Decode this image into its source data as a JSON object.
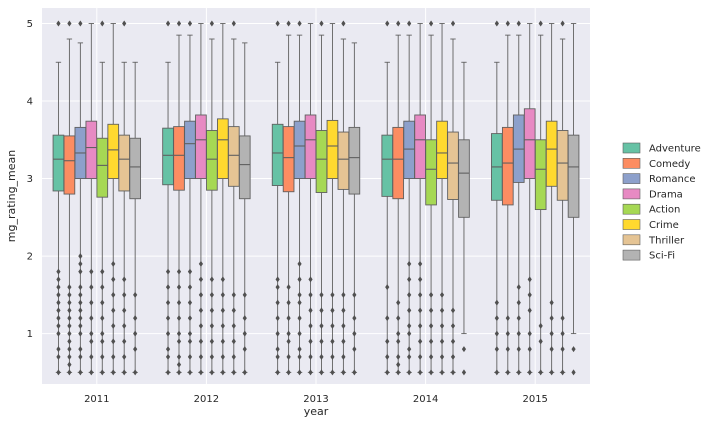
{
  "chart_data": {
    "type": "box",
    "xlabel": "year",
    "ylabel": "mg_rating_mean",
    "ylim": [
      0.35,
      5.2
    ],
    "y_ticks": [
      1,
      2,
      3,
      4,
      5
    ],
    "grid": true,
    "legend_position": "right",
    "categories": [
      "2011",
      "2012",
      "2013",
      "2014",
      "2015"
    ],
    "series": [
      {
        "name": "Adventure",
        "color": "#66c2a5",
        "boxes": [
          {
            "whislo": 0.5,
            "q1": 2.84,
            "med": 3.25,
            "q3": 3.56,
            "whishi": 4.5,
            "fliers": [
              0.5,
              0.7,
              0.8,
              1.0,
              1.1,
              1.2,
              1.3,
              1.4,
              1.5,
              1.6,
              1.7,
              1.8,
              5.0
            ]
          },
          {
            "whislo": 0.5,
            "q1": 2.92,
            "med": 3.3,
            "q3": 3.65,
            "whishi": 4.5,
            "fliers": [
              0.5,
              0.7,
              0.8,
              1.0,
              1.2,
              1.4,
              1.6,
              1.8,
              5.0
            ]
          },
          {
            "whislo": 0.5,
            "q1": 2.91,
            "med": 3.33,
            "q3": 3.7,
            "whishi": 4.5,
            "fliers": [
              0.5,
              0.7,
              0.8,
              1.0,
              1.2,
              1.4,
              1.6,
              1.7,
              5.0
            ]
          },
          {
            "whislo": 0.5,
            "q1": 2.77,
            "med": 3.25,
            "q3": 3.56,
            "whishi": 4.5,
            "fliers": [
              0.5,
              0.7,
              0.9,
              1.2,
              1.6,
              5.0
            ]
          },
          {
            "whislo": 0.5,
            "q1": 2.72,
            "med": 3.15,
            "q3": 3.58,
            "whishi": 4.5,
            "fliers": [
              0.5,
              0.8,
              1.0,
              1.2,
              1.4,
              5.0
            ]
          }
        ]
      },
      {
        "name": "Comedy",
        "color": "#fc8d62",
        "boxes": [
          {
            "whislo": 0.5,
            "q1": 2.8,
            "med": 3.23,
            "q3": 3.55,
            "whishi": 4.8,
            "fliers": [
              0.5,
              0.6,
              0.7,
              0.8,
              0.9,
              1.0,
              1.1,
              1.2,
              1.3,
              1.4,
              1.5,
              1.6,
              5.0
            ]
          },
          {
            "whislo": 0.5,
            "q1": 2.85,
            "med": 3.3,
            "q3": 3.67,
            "whishi": 4.85,
            "fliers": [
              0.5,
              0.6,
              0.7,
              0.9,
              1.0,
              1.2,
              1.4,
              1.6,
              1.8,
              5.0
            ]
          },
          {
            "whislo": 0.5,
            "q1": 2.83,
            "med": 3.27,
            "q3": 3.67,
            "whishi": 4.85,
            "fliers": [
              0.5,
              0.7,
              0.9,
              1.0,
              1.2,
              1.4,
              1.6,
              5.0
            ]
          },
          {
            "whislo": 0.5,
            "q1": 2.74,
            "med": 3.25,
            "q3": 3.66,
            "whishi": 4.85,
            "fliers": [
              0.5,
              0.6,
              0.7,
              0.9,
              1.0,
              1.2,
              1.4,
              5.0
            ]
          },
          {
            "whislo": 0.5,
            "q1": 2.66,
            "med": 3.2,
            "q3": 3.66,
            "whishi": 4.85,
            "fliers": [
              0.5,
              0.8,
              1.0,
              1.2,
              5.0
            ]
          }
        ]
      },
      {
        "name": "Romance",
        "color": "#8da0cb",
        "boxes": [
          {
            "whislo": 0.5,
            "q1": 3.0,
            "med": 3.33,
            "q3": 3.66,
            "whishi": 4.75,
            "fliers": [
              0.5,
              0.7,
              0.8,
              1.0,
              1.1,
              1.2,
              1.3,
              1.4,
              1.5,
              1.6,
              1.8,
              1.9,
              2.0,
              5.0
            ]
          },
          {
            "whislo": 0.5,
            "q1": 3.0,
            "med": 3.45,
            "q3": 3.74,
            "whishi": 4.85,
            "fliers": [
              0.5,
              0.7,
              0.9,
              1.0,
              1.2,
              1.4,
              1.6,
              1.8,
              5.0
            ]
          },
          {
            "whislo": 0.5,
            "q1": 3.0,
            "med": 3.42,
            "q3": 3.74,
            "whishi": 4.85,
            "fliers": [
              0.5,
              0.7,
              0.8,
              1.0,
              1.2,
              1.4,
              1.5,
              1.7,
              1.9,
              5.0
            ]
          },
          {
            "whislo": 0.5,
            "q1": 3.0,
            "med": 3.38,
            "q3": 3.74,
            "whishi": 4.85,
            "fliers": [
              0.5,
              0.7,
              0.8,
              1.0,
              1.1,
              1.3,
              1.5,
              1.7,
              1.9,
              5.0
            ]
          },
          {
            "whislo": 0.5,
            "q1": 2.95,
            "med": 3.38,
            "q3": 3.82,
            "whishi": 4.85,
            "fliers": [
              0.5,
              0.8,
              1.0,
              1.2,
              1.4,
              1.6,
              5.0
            ]
          }
        ]
      },
      {
        "name": "Drama",
        "color": "#e78ac3",
        "boxes": [
          {
            "whislo": 0.5,
            "q1": 3.0,
            "med": 3.4,
            "q3": 3.74,
            "whishi": 5.0,
            "fliers": [
              0.5,
              0.7,
              0.9,
              1.0,
              1.2,
              1.4,
              1.6,
              1.8
            ]
          },
          {
            "whislo": 0.5,
            "q1": 3.0,
            "med": 3.5,
            "q3": 3.82,
            "whishi": 5.0,
            "fliers": [
              0.5,
              0.7,
              0.9,
              1.1,
              1.3,
              1.5,
              1.7,
              1.9
            ]
          },
          {
            "whislo": 0.5,
            "q1": 3.0,
            "med": 3.5,
            "q3": 3.82,
            "whishi": 5.0,
            "fliers": [
              0.5,
              0.7,
              0.9,
              1.1,
              1.3,
              1.5,
              1.7
            ]
          },
          {
            "whislo": 0.5,
            "q1": 3.0,
            "med": 3.5,
            "q3": 3.82,
            "whishi": 5.0,
            "fliers": [
              0.5,
              0.7,
              0.9,
              1.1,
              1.3,
              1.5,
              1.7,
              1.9
            ]
          },
          {
            "whislo": 0.5,
            "q1": 3.0,
            "med": 3.5,
            "q3": 3.9,
            "whishi": 5.0,
            "fliers": [
              0.5,
              0.8,
              1.0,
              1.3,
              1.5,
              1.7
            ]
          }
        ]
      },
      {
        "name": "Action",
        "color": "#a6d854",
        "boxes": [
          {
            "whislo": 0.5,
            "q1": 2.76,
            "med": 3.17,
            "q3": 3.52,
            "whishi": 4.5,
            "fliers": [
              0.5,
              0.7,
              0.9,
              1.0,
              1.2,
              1.4,
              1.6,
              1.8,
              5.0
            ]
          },
          {
            "whislo": 0.5,
            "q1": 2.85,
            "med": 3.25,
            "q3": 3.62,
            "whishi": 4.8,
            "fliers": [
              0.5,
              0.7,
              0.9,
              1.1,
              1.3,
              1.5,
              1.7,
              5.0
            ]
          },
          {
            "whislo": 0.5,
            "q1": 2.82,
            "med": 3.25,
            "q3": 3.62,
            "whishi": 4.85,
            "fliers": [
              0.5,
              0.7,
              0.9,
              1.1,
              1.3,
              1.5,
              5.0
            ]
          },
          {
            "whislo": 0.5,
            "q1": 2.66,
            "med": 3.12,
            "q3": 3.5,
            "whishi": 4.85,
            "fliers": [
              0.5,
              0.7,
              0.9,
              1.1,
              1.3,
              1.5,
              5.0
            ]
          },
          {
            "whislo": 0.5,
            "q1": 2.6,
            "med": 3.12,
            "q3": 3.5,
            "whishi": 4.85,
            "fliers": [
              0.5,
              0.9,
              1.1,
              5.0
            ]
          }
        ]
      },
      {
        "name": "Crime",
        "color": "#ffd92f",
        "boxes": [
          {
            "whislo": 0.5,
            "q1": 3.0,
            "med": 3.37,
            "q3": 3.7,
            "whishi": 5.0,
            "fliers": [
              0.5,
              0.7,
              0.9,
              1.1,
              1.3,
              1.5,
              1.7,
              1.9
            ]
          },
          {
            "whislo": 0.5,
            "q1": 3.0,
            "med": 3.5,
            "q3": 3.77,
            "whishi": 5.0,
            "fliers": [
              0.5,
              0.7,
              0.9,
              1.1,
              1.3,
              1.5,
              1.7
            ]
          },
          {
            "whislo": 0.5,
            "q1": 3.0,
            "med": 3.42,
            "q3": 3.75,
            "whishi": 5.0,
            "fliers": [
              0.5,
              0.7,
              0.9,
              1.1,
              1.3,
              1.5
            ]
          },
          {
            "whislo": 0.5,
            "q1": 3.0,
            "med": 3.33,
            "q3": 3.74,
            "whishi": 5.0,
            "fliers": [
              0.5,
              0.7,
              0.9,
              1.1,
              1.3,
              1.5
            ]
          },
          {
            "whislo": 0.5,
            "q1": 2.9,
            "med": 3.38,
            "q3": 3.74,
            "whishi": 5.0,
            "fliers": [
              0.5,
              0.8,
              1.0,
              1.2,
              1.4
            ]
          }
        ]
      },
      {
        "name": "Thriller",
        "color": "#e5c494",
        "boxes": [
          {
            "whislo": 0.5,
            "q1": 2.84,
            "med": 3.25,
            "q3": 3.56,
            "whishi": 4.5,
            "fliers": [
              0.5,
              0.7,
              0.9,
              1.1,
              1.3,
              1.5,
              1.7,
              5.0
            ]
          },
          {
            "whislo": 0.5,
            "q1": 2.9,
            "med": 3.3,
            "q3": 3.67,
            "whishi": 4.8,
            "fliers": [
              0.5,
              0.7,
              0.9,
              1.1,
              1.3,
              1.5,
              5.0
            ]
          },
          {
            "whislo": 0.5,
            "q1": 2.86,
            "med": 3.25,
            "q3": 3.6,
            "whishi": 4.8,
            "fliers": [
              0.5,
              0.7,
              0.9,
              1.1,
              1.3,
              1.5,
              5.0
            ]
          },
          {
            "whislo": 0.5,
            "q1": 2.73,
            "med": 3.2,
            "q3": 3.6,
            "whishi": 4.8,
            "fliers": [
              0.5,
              0.7,
              0.9,
              1.1,
              1.3,
              5.0
            ]
          },
          {
            "whislo": 0.5,
            "q1": 2.72,
            "med": 3.2,
            "q3": 3.62,
            "whishi": 4.8,
            "fliers": [
              0.5,
              0.8,
              1.0,
              1.2,
              5.0
            ]
          }
        ]
      },
      {
        "name": "Sci-Fi",
        "color": "#b3b3b3",
        "boxes": [
          {
            "whislo": 0.5,
            "q1": 2.74,
            "med": 3.15,
            "q3": 3.52,
            "whishi": 4.5,
            "fliers": [
              0.5,
              0.8,
              1.0,
              1.2,
              1.5
            ]
          },
          {
            "whislo": 0.5,
            "q1": 2.74,
            "med": 3.18,
            "q3": 3.55,
            "whishi": 4.75,
            "fliers": [
              0.5,
              0.8,
              1.0,
              1.2,
              1.5
            ]
          },
          {
            "whislo": 0.5,
            "q1": 2.8,
            "med": 3.27,
            "q3": 3.66,
            "whishi": 4.75,
            "fliers": [
              0.5,
              0.8,
              1.0,
              1.2,
              1.5
            ]
          },
          {
            "whislo": 1.0,
            "q1": 2.5,
            "med": 3.07,
            "q3": 3.5,
            "whishi": 4.5,
            "fliers": [
              0.5,
              0.8
            ]
          },
          {
            "whislo": 1.0,
            "q1": 2.5,
            "med": 3.15,
            "q3": 3.56,
            "whishi": 5.0,
            "fliers": [
              0.5,
              0.8
            ]
          }
        ]
      }
    ]
  }
}
